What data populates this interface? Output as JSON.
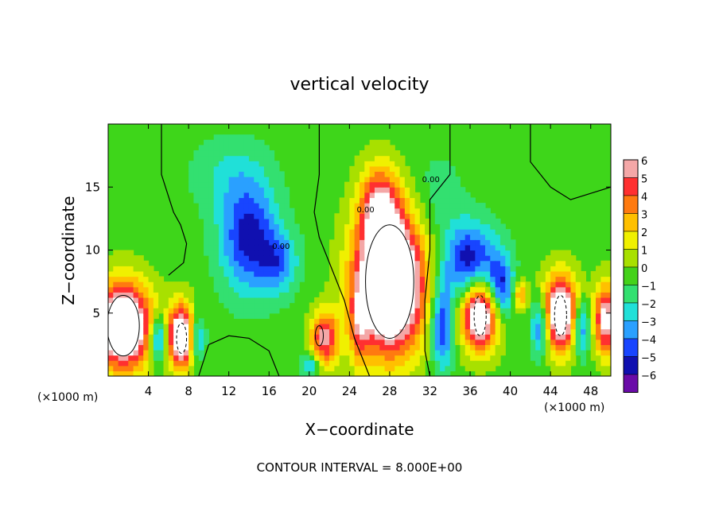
{
  "chart_data": {
    "type": "heatmap",
    "title": "vertical velocity",
    "xlabel": "X−coordinate",
    "ylabel": "Z−coordinate",
    "x_unit_left": "(×1000 m)",
    "x_unit_right": "(×1000 m)",
    "footer": "CONTOUR INTERVAL = 8.000E+00",
    "xlim": [
      0,
      50
    ],
    "ylim": [
      0,
      20
    ],
    "x_ticks": [
      4,
      8,
      12,
      16,
      20,
      24,
      28,
      32,
      36,
      40,
      44,
      48
    ],
    "y_ticks": [
      5,
      10,
      15
    ],
    "contour_labels": [
      "0.00",
      "0.00",
      "0.00"
    ],
    "colorbar": {
      "levels": [
        6,
        5,
        4,
        3,
        2,
        1,
        0,
        -1,
        -2,
        -3,
        -4,
        -5,
        -6
      ],
      "tick_labels": [
        "6",
        "5",
        "4",
        "3",
        "2",
        "1",
        "0",
        "−1",
        "−2",
        "−3",
        "−4",
        "−5",
        "−6"
      ],
      "colors": [
        "#f4a7a7",
        "#ff3030",
        "#ff7a10",
        "#ffc000",
        "#f0f000",
        "#a8e000",
        "#44d21a",
        "#33e070",
        "#20e0d8",
        "#2aa0ff",
        "#1845ff",
        "#1010b0",
        "#6a0ba8"
      ]
    },
    "features": [
      {
        "type": "updraft",
        "x": 1.5,
        "z": 4.0,
        "peak": 10
      },
      {
        "type": "updraft",
        "x": 7.5,
        "z": 3.0,
        "peak": 9
      },
      {
        "type": "updraft",
        "x": 21.5,
        "z": 3.0,
        "peak": 6
      },
      {
        "type": "updraft",
        "x": 28.0,
        "z": 7.5,
        "peak": 12
      },
      {
        "type": "updraft",
        "x": 37.0,
        "z": 5.0,
        "peak": 9
      },
      {
        "type": "updraft",
        "x": 45.0,
        "z": 5.0,
        "peak": 9
      },
      {
        "type": "downdraft",
        "x": 14.0,
        "z": 11.0,
        "peak": -5
      },
      {
        "type": "downdraft",
        "x": 36.0,
        "z": 9.0,
        "peak": -5.5
      }
    ]
  }
}
